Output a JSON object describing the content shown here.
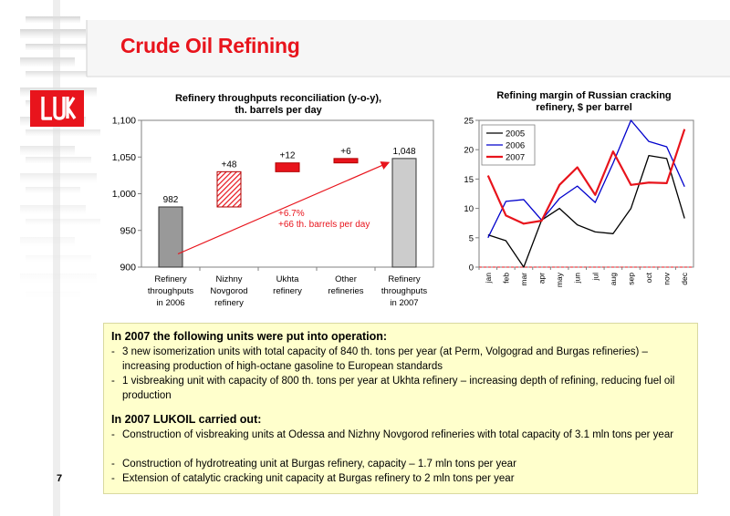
{
  "slide": {
    "title": "Crude Oil Refining",
    "page_number": "7",
    "accent_color": "#e8141c",
    "logo_icon": "lukoil-logo-icon",
    "logo_text": "LUK"
  },
  "chart_data": [
    {
      "type": "bar",
      "subtype": "waterfall",
      "title": "Refinery throughputs reconciliation (y-o-y),\nth. barrels per day",
      "title_lines": [
        "Refinery throughputs reconciliation (y-o-y),",
        "th. barrels per day"
      ],
      "categories": [
        [
          "Refinery",
          "throughputs",
          "in 2006"
        ],
        [
          "Nizhny",
          "Novgorod",
          "refinery"
        ],
        [
          "Ukhta",
          "refinery"
        ],
        [
          "Other",
          "refineries"
        ],
        [
          "Refinery",
          "throughputs",
          "in 2007"
        ]
      ],
      "bars": [
        {
          "kind": "total",
          "base": 900,
          "value": 982,
          "label": "982",
          "color": "#999999"
        },
        {
          "kind": "delta",
          "base": 982,
          "value": 1030,
          "label": "+48",
          "color": "#e8141c",
          "pattern": "hatched"
        },
        {
          "kind": "delta",
          "base": 1030,
          "value": 1042,
          "label": "+12",
          "color": "#e8141c"
        },
        {
          "kind": "delta",
          "base": 1042,
          "value": 1048,
          "label": "+6",
          "color": "#e8141c"
        },
        {
          "kind": "total",
          "base": 900,
          "value": 1048,
          "label": "1,048",
          "color": "#cccccc"
        }
      ],
      "yticks": [
        "900",
        "950",
        "1,000",
        "1,050",
        "1,100"
      ],
      "ylim": [
        900,
        1100
      ],
      "annotation": [
        "+6.7%",
        "+66 th. barrels per day"
      ],
      "grid": false
    },
    {
      "type": "line",
      "title": "Refining margin of Russian cracking\nrefinery, $ per barrel",
      "title_lines": [
        "Refining margin of Russian cracking",
        "refinery, $ per barrel"
      ],
      "x": [
        "jan",
        "feb",
        "mar",
        "apr",
        "may",
        "jun",
        "jul",
        "aug",
        "sep",
        "oct",
        "nov",
        "dec"
      ],
      "series": [
        {
          "name": "2005",
          "color": "#000000",
          "values": [
            5.5,
            4.5,
            0,
            8,
            10,
            7.2,
            6,
            5.7,
            10,
            19,
            18.5,
            8.3
          ]
        },
        {
          "name": "2006",
          "color": "#0000cc",
          "values": [
            5,
            11.2,
            11.5,
            8,
            11.7,
            13.8,
            11,
            17.7,
            25,
            21.4,
            20.5,
            13.7
          ]
        },
        {
          "name": "2007",
          "color": "#e8141c",
          "values": [
            15.6,
            8.8,
            7.4,
            7.9,
            14,
            17,
            12.3,
            19.7,
            14,
            14.4,
            14.3,
            23.5
          ]
        }
      ],
      "yticks": [
        "0",
        "5",
        "10",
        "15",
        "20",
        "25"
      ],
      "ylim": [
        0,
        25
      ],
      "legend": "top-left",
      "grid": false
    }
  ],
  "textbox": {
    "heading1": "In 2007 the following units were put into operation:",
    "items1": [
      "3 new isomerization units with total capacity of 840 th. tons per year (at Perm, Volgograd and Burgas refineries) – increasing production of high-octane gasoline to European standards",
      "1 visbreaking unit with capacity of 800 th. tons per year at Ukhta refinery – increasing depth of refining, reducing fuel oil production"
    ],
    "heading2": "In 2007 LUKOIL carried out:",
    "items2": [
      "Construction of visbreaking units at Odessa and Nizhny Novgorod refineries with total capacity of 3.1 mln tons per year",
      "Construction of hydrotreating unit at Burgas refinery, capacity – 1.7 mln tons per year",
      "Extension of catalytic cracking unit capacity at Burgas refinery to 2 mln tons per year"
    ],
    "dash": "-",
    "background": "#ffffcc"
  }
}
